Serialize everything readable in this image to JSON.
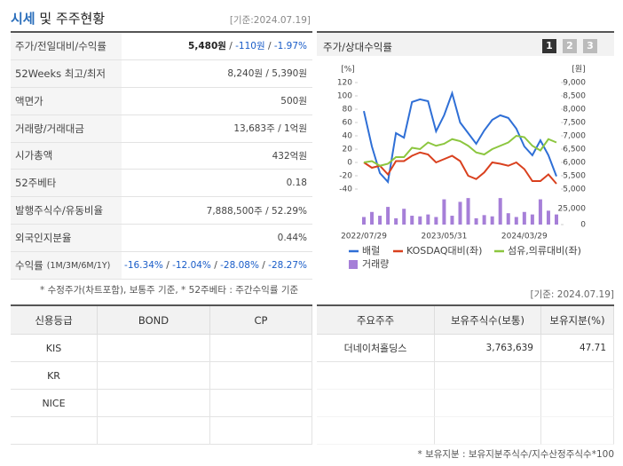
{
  "header": {
    "title_highlight": "시세",
    "title_rest": "및 주주현황",
    "date": "[기준:2024.07.19]"
  },
  "summary": {
    "rows": [
      {
        "label": "주가/전일대비/수익률",
        "value": [
          "5,480원",
          " / ",
          "-110원",
          " / ",
          "-1.97%"
        ],
        "tones": [
          "bold",
          "plain",
          "down",
          "plain",
          "down"
        ]
      },
      {
        "label": "52Weeks 최고/최저",
        "value": [
          "8,240원 / 5,390원"
        ]
      },
      {
        "label": "액면가",
        "value": [
          "500원"
        ]
      },
      {
        "label": "거래량/거래대금",
        "value": [
          "13,683주 / 1억원"
        ]
      },
      {
        "label": "시가총액",
        "value": [
          "432억원"
        ]
      },
      {
        "label": "52주베타",
        "value": [
          "0.18"
        ]
      },
      {
        "label": "발행주식수/유동비율",
        "value": [
          "7,888,500주 / 52.29%"
        ]
      },
      {
        "label": "외국인지분율",
        "value": [
          "0.44%"
        ]
      },
      {
        "label": "수익률",
        "label_note": "(1M/3M/6M/1Y)",
        "value": [
          "-16.34%",
          " / ",
          "-12.04%",
          " / ",
          "-28.08%",
          " / ",
          "-28.27%"
        ],
        "tones": [
          "down",
          "plain",
          "down",
          "plain",
          "down",
          "plain",
          "down"
        ]
      }
    ],
    "note": "* 수정주가(차트포함), 보통주 기준, * 52주베타 : 주간수익률 기준"
  },
  "chart": {
    "type": "line",
    "title": "주가/상대수익률",
    "tabs": [
      "1",
      "2",
      "3"
    ],
    "active_tab": 0,
    "y_unit": "[%]",
    "y2_unit": "[원]",
    "categories": [
      "2022/07/29",
      null,
      null,
      null,
      null,
      null,
      null,
      null,
      null,
      null,
      "2023/05/31",
      null,
      null,
      null,
      null,
      null,
      null,
      null,
      null,
      null,
      "2024/03/29",
      null,
      null,
      null,
      null
    ],
    "ylim": [
      -40,
      120
    ],
    "yticks": [
      120,
      100,
      80,
      60,
      40,
      20,
      0,
      -20,
      -40
    ],
    "y2lim": [
      5000,
      9000
    ],
    "y2ticks": [
      {
        "value": 9000,
        "label": "9,000"
      },
      {
        "value": 8500,
        "label": "8,500"
      },
      {
        "value": 8000,
        "label": "8,000"
      },
      {
        "value": 7500,
        "label": "7,500"
      },
      {
        "value": 7000,
        "label": "7,000"
      },
      {
        "value": 6500,
        "label": "6,500"
      },
      {
        "value": 6000,
        "label": "6,000"
      },
      {
        "value": 5500,
        "label": "5,500"
      },
      {
        "value": 5000,
        "label": "5,000"
      }
    ],
    "vlim": [
      0,
      45000
    ],
    "vticks": [
      {
        "value": 25000,
        "label": "25,000"
      },
      0
    ],
    "series": [
      {
        "name": "배럴",
        "color": "#2f6fd6",
        "axis": "y2",
        "values": [
          7930,
          6600,
          5600,
          5270,
          7100,
          6930,
          8270,
          8370,
          8300,
          7170,
          7770,
          8600,
          7500,
          7100,
          6700,
          7200,
          7600,
          7770,
          7670,
          7270,
          6600,
          6270,
          6830,
          6270,
          5480
        ]
      },
      {
        "name": "KOSDAQ대비(좌)",
        "color": "#d9401e",
        "axis": "y",
        "values": [
          0,
          -8,
          -5,
          -18,
          2,
          2,
          10,
          15,
          12,
          0,
          5,
          10,
          2,
          -20,
          -25,
          -15,
          0,
          -2,
          -5,
          0,
          -10,
          -28,
          -28,
          -18,
          -32
        ]
      },
      {
        "name": "섬유,의류대비(좌)",
        "color": "#8cc63f",
        "axis": "y",
        "values": [
          0,
          2,
          -5,
          -2,
          8,
          8,
          22,
          20,
          30,
          25,
          28,
          35,
          32,
          25,
          15,
          12,
          20,
          25,
          30,
          40,
          38,
          25,
          18,
          35,
          30
        ]
      },
      {
        "name": "거래량",
        "color": "#a67fd8",
        "axis": "vol",
        "type": "bar",
        "values": [
          12000,
          20000,
          14000,
          28000,
          10000,
          25000,
          14000,
          13000,
          16000,
          12000,
          40000,
          14000,
          36000,
          42000,
          10000,
          15000,
          13000,
          42000,
          18000,
          12000,
          20000,
          16000,
          40000,
          22000,
          16000
        ]
      }
    ]
  },
  "date_note": "[기준: 2024.07.19]",
  "ratings": {
    "columns": [
      "신용등급",
      "BOND",
      "CP"
    ],
    "rows": [
      [
        "KIS"
      ],
      [
        "KR"
      ],
      [
        "NICE"
      ]
    ]
  },
  "shareholders": {
    "columns": [
      "주요주주",
      "보유주식수(보통)",
      "보유지분(%)"
    ],
    "rows": [
      [
        "더네이처홀딩스",
        "3,763,639",
        "47.71"
      ]
    ],
    "note": "* 보유지분 : 보유지분주식수/지수산정주식수*100"
  }
}
